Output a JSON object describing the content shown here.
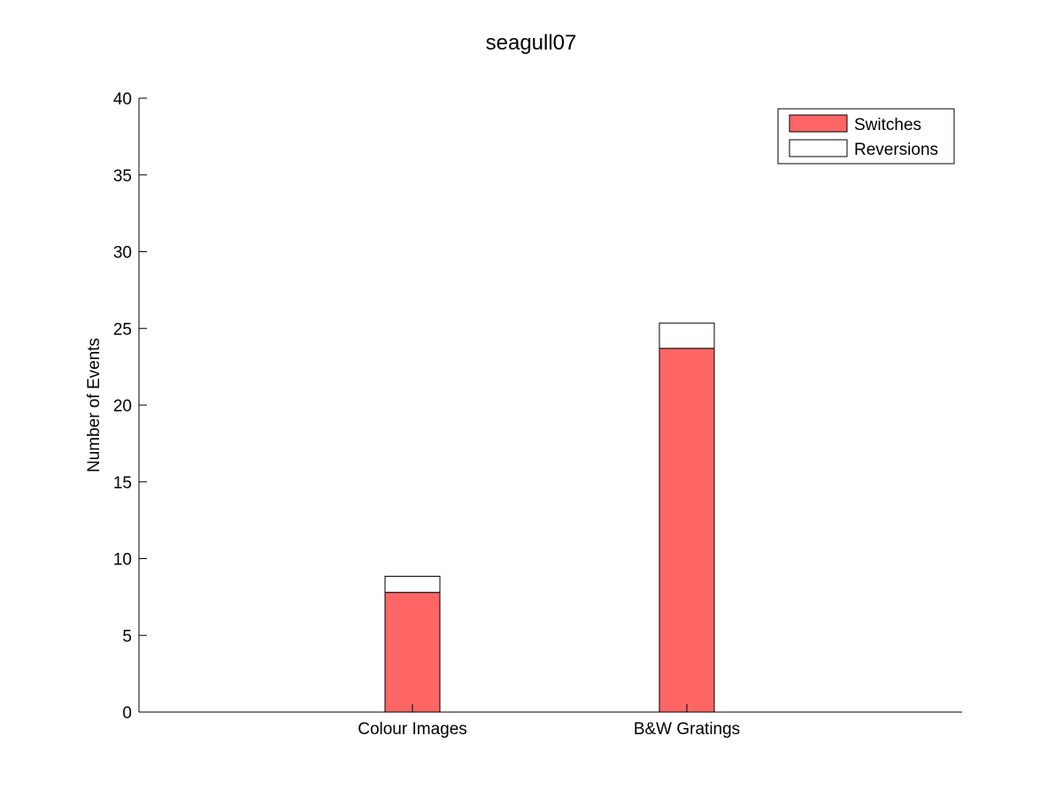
{
  "chart_data": {
    "type": "bar",
    "stacked": true,
    "title": "seagull07",
    "xlabel": "",
    "ylabel": "Number of Events",
    "categories": [
      "Colour Images",
      "B&W Gratings"
    ],
    "series": [
      {
        "name": "Switches",
        "values": [
          7.8,
          23.7
        ],
        "color": "#ff6666"
      },
      {
        "name": "Reversions",
        "values": [
          1.05,
          1.65
        ],
        "color": "#ffffff"
      }
    ],
    "ylim": [
      0,
      40
    ],
    "yticks": [
      0,
      5,
      10,
      15,
      20,
      25,
      30,
      35,
      40
    ],
    "grid": false,
    "legend_position": "top-right"
  }
}
